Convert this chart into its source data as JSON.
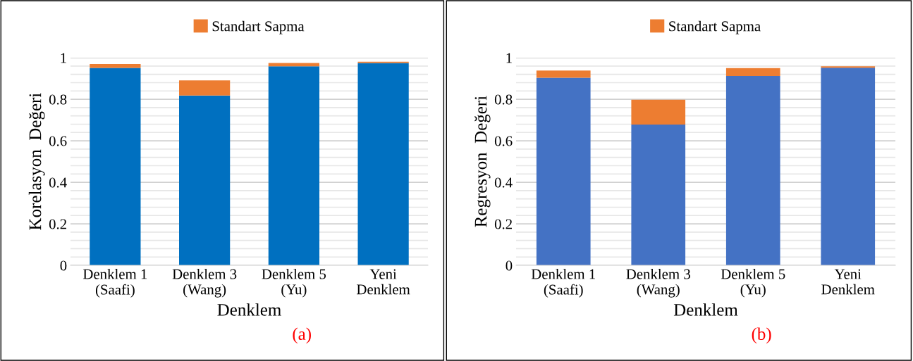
{
  "chart_data": [
    {
      "type": "bar",
      "stacked": true,
      "xlabel": "Denklem",
      "ylabel": "Korelasyon  Değeri",
      "annotations": [
        "(a)"
      ],
      "categories": [
        "Denklem 1\n(Saafi)",
        "Denklem 3\n(Wang)",
        "Denklem 5\n(Yu)",
        "Yeni\nDenklem"
      ],
      "series": [
        {
          "color": "#0070c0",
          "values": [
            0.951,
            0.818,
            0.959,
            0.975
          ]
        },
        {
          "name": "Standart Sapma",
          "color": "#ed7d31",
          "values": [
            0.019,
            0.073,
            0.016,
            0.006
          ]
        }
      ],
      "ylim": [
        0,
        1
      ],
      "yticks": [
        0,
        {
          "value": 0.04,
          "label": null
        },
        {
          "value": 0.08,
          "label": null
        },
        {
          "value": 0.12,
          "label": null
        },
        {
          "value": 0.16,
          "label": null
        },
        0.2,
        {
          "value": 0.24,
          "label": null
        },
        {
          "value": 0.28,
          "label": null
        },
        {
          "value": 0.32,
          "label": null
        },
        {
          "value": 0.36,
          "label": null
        },
        0.4,
        {
          "value": 0.44,
          "label": null
        },
        {
          "value": 0.48,
          "label": null
        },
        {
          "value": 0.52,
          "label": null
        },
        {
          "value": 0.56,
          "label": null
        },
        0.6,
        {
          "value": 0.64,
          "label": null
        },
        {
          "value": 0.68,
          "label": null
        },
        {
          "value": 0.72,
          "label": null
        },
        {
          "value": 0.76,
          "label": null
        },
        0.8,
        {
          "value": 0.84,
          "label": null
        },
        {
          "value": 0.88,
          "label": null
        },
        {
          "value": 0.92,
          "label": null
        },
        {
          "value": 0.96,
          "label": null
        },
        1
      ],
      "grid": "y",
      "legend": "top"
    },
    {
      "type": "bar",
      "stacked": true,
      "xlabel": "Denklem",
      "ylabel": "Regresyon  Değeri",
      "annotations": [
        "(b)"
      ],
      "categories": [
        "Denklem 1\n(Saafi)",
        "Denklem 3\n(Wang)",
        "Denklem 5\n(Yu)",
        "Yeni\nDenklem"
      ],
      "series": [
        {
          "color": "#4472c4",
          "values": [
            0.904,
            0.678,
            0.912,
            0.952
          ]
        },
        {
          "name": "Standart Sapma",
          "color": "#ed7d31",
          "values": [
            0.034,
            0.12,
            0.038,
            0.007
          ]
        }
      ],
      "ylim": [
        0,
        1
      ],
      "yticks": [
        0,
        {
          "value": 0.04,
          "label": null
        },
        {
          "value": 0.08,
          "label": null
        },
        {
          "value": 0.12,
          "label": null
        },
        {
          "value": 0.16,
          "label": null
        },
        0.2,
        {
          "value": 0.24,
          "label": null
        },
        {
          "value": 0.28,
          "label": null
        },
        {
          "value": 0.32,
          "label": null
        },
        {
          "value": 0.36,
          "label": null
        },
        0.4,
        {
          "value": 0.44,
          "label": null
        },
        {
          "value": 0.48,
          "label": null
        },
        {
          "value": 0.52,
          "label": null
        },
        {
          "value": 0.56,
          "label": null
        },
        0.6,
        {
          "value": 0.64,
          "label": null
        },
        {
          "value": 0.68,
          "label": null
        },
        {
          "value": 0.72,
          "label": null
        },
        {
          "value": 0.76,
          "label": null
        },
        0.8,
        {
          "value": 0.84,
          "label": null
        },
        {
          "value": 0.88,
          "label": null
        },
        {
          "value": 0.92,
          "label": null
        },
        {
          "value": 0.96,
          "label": null
        },
        1
      ],
      "grid": "y",
      "legend": "top"
    }
  ]
}
